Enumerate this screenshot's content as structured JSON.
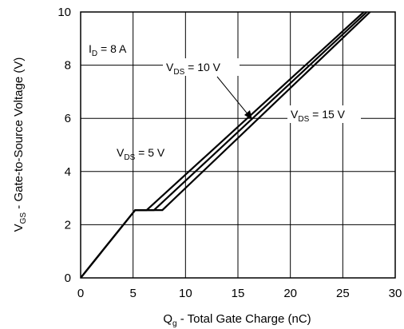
{
  "chart_data": {
    "type": "line",
    "xlabel": {
      "main": "Q",
      "sub": "g",
      "rest": " - Total Gate Charge (nC)"
    },
    "ylabel": {
      "main": "V",
      "sub": "GS",
      "rest": " - Gate-to-Source Voltage (V)"
    },
    "xlim": [
      0,
      30
    ],
    "ylim": [
      0,
      10
    ],
    "xticks": [
      0,
      5,
      10,
      15,
      20,
      25,
      30
    ],
    "yticks": [
      0,
      2,
      4,
      6,
      8,
      10
    ],
    "grid": true,
    "line_color": "#000000",
    "series": [
      {
        "points": [
          [
            0,
            0
          ],
          [
            5.2,
            2.55
          ],
          [
            6.3,
            2.55
          ],
          [
            27.0,
            10.0
          ]
        ]
      },
      {
        "points": [
          [
            0,
            0
          ],
          [
            5.2,
            2.55
          ],
          [
            7.0,
            2.55
          ],
          [
            27.3,
            10.0
          ]
        ]
      },
      {
        "points": [
          [
            0,
            0
          ],
          [
            5.2,
            2.55
          ],
          [
            7.8,
            2.55
          ],
          [
            27.6,
            10.0
          ]
        ]
      }
    ],
    "annotations": [
      {
        "main": "I",
        "sub": "D",
        "rest": " = 8 A"
      },
      {
        "main": "V",
        "sub": "DS",
        "rest": " = 10 V"
      },
      {
        "main": "V",
        "sub": "DS",
        "rest": " = 15 V"
      },
      {
        "main": "V",
        "sub": "DS",
        "rest": " = 5 V"
      }
    ]
  }
}
